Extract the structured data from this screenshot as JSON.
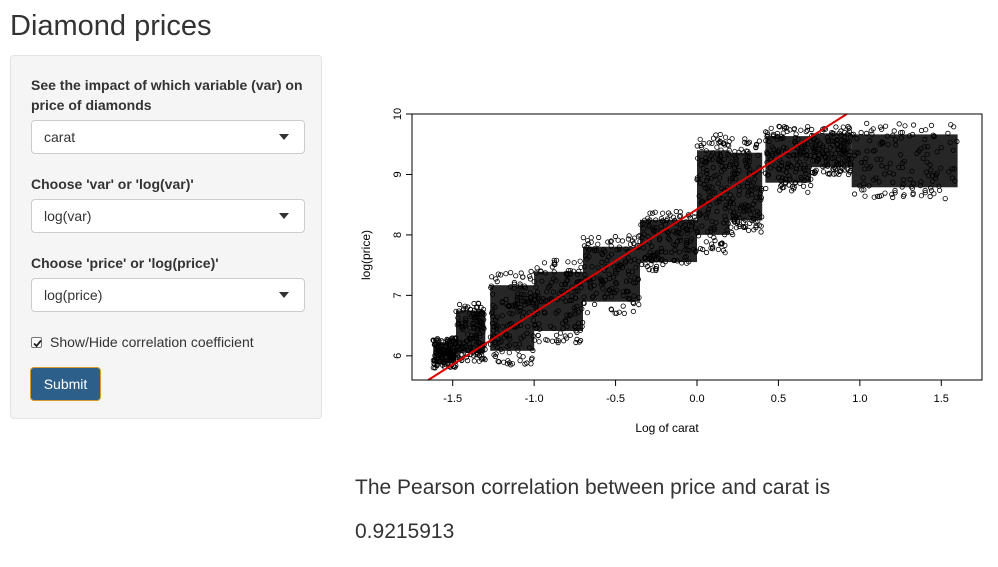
{
  "page": {
    "title": "Diamond prices"
  },
  "controls": {
    "var_label": "See the impact of which variable (var) on price of diamonds",
    "var_value": "carat",
    "xform_label": "Choose 'var' or 'log(var)'",
    "xform_value": "log(var)",
    "price_label": "Choose 'price' or 'log(price)'",
    "price_value": "log(price)",
    "checkbox_label": "Show/Hide correlation coefficient",
    "checkbox_checked": true,
    "submit_label": "Submit"
  },
  "result": {
    "text": "The Pearson correlation between price and carat is",
    "value": "0.9215913"
  },
  "chart_data": {
    "type": "scatter",
    "xlabel": "Log of carat",
    "ylabel": "log(price)",
    "xlim": [
      -1.75,
      1.75
    ],
    "ylim": [
      5.6,
      10.0
    ],
    "xticks": [
      "-1.5",
      "-1.0",
      "-0.5",
      "0.0",
      "0.5",
      "1.0",
      "1.5"
    ],
    "yticks": [
      "6",
      "7",
      "8",
      "9",
      "10"
    ],
    "point_color": "#000000",
    "regression_color": "#e00000",
    "regression_line": {
      "x": [
        -1.65,
        0.92
      ],
      "y": [
        5.6,
        10.0
      ]
    },
    "clusters": [
      {
        "x": [
          -1.62,
          -1.48
        ],
        "y": [
          5.8,
          6.3
        ]
      },
      {
        "x": [
          -1.48,
          -1.3
        ],
        "y": [
          5.9,
          6.9
        ]
      },
      {
        "x": [
          -1.27,
          -1.0
        ],
        "y": [
          5.85,
          7.4
        ]
      },
      {
        "x": [
          -1.0,
          -0.7
        ],
        "y": [
          6.2,
          7.6
        ]
      },
      {
        "x": [
          -0.7,
          -0.35
        ],
        "y": [
          6.7,
          8.0
        ]
      },
      {
        "x": [
          -0.35,
          0.0
        ],
        "y": [
          7.4,
          8.4
        ]
      },
      {
        "x": [
          0.0,
          0.2
        ],
        "y": [
          7.7,
          9.7
        ]
      },
      {
        "x": [
          0.2,
          0.4
        ],
        "y": [
          8.0,
          9.6
        ]
      },
      {
        "x": [
          0.42,
          0.7
        ],
        "y": [
          8.7,
          9.8
        ]
      },
      {
        "x": [
          0.7,
          0.95
        ],
        "y": [
          9.0,
          9.8
        ]
      },
      {
        "x": [
          0.95,
          1.6
        ],
        "y": [
          8.6,
          9.85
        ]
      }
    ]
  }
}
